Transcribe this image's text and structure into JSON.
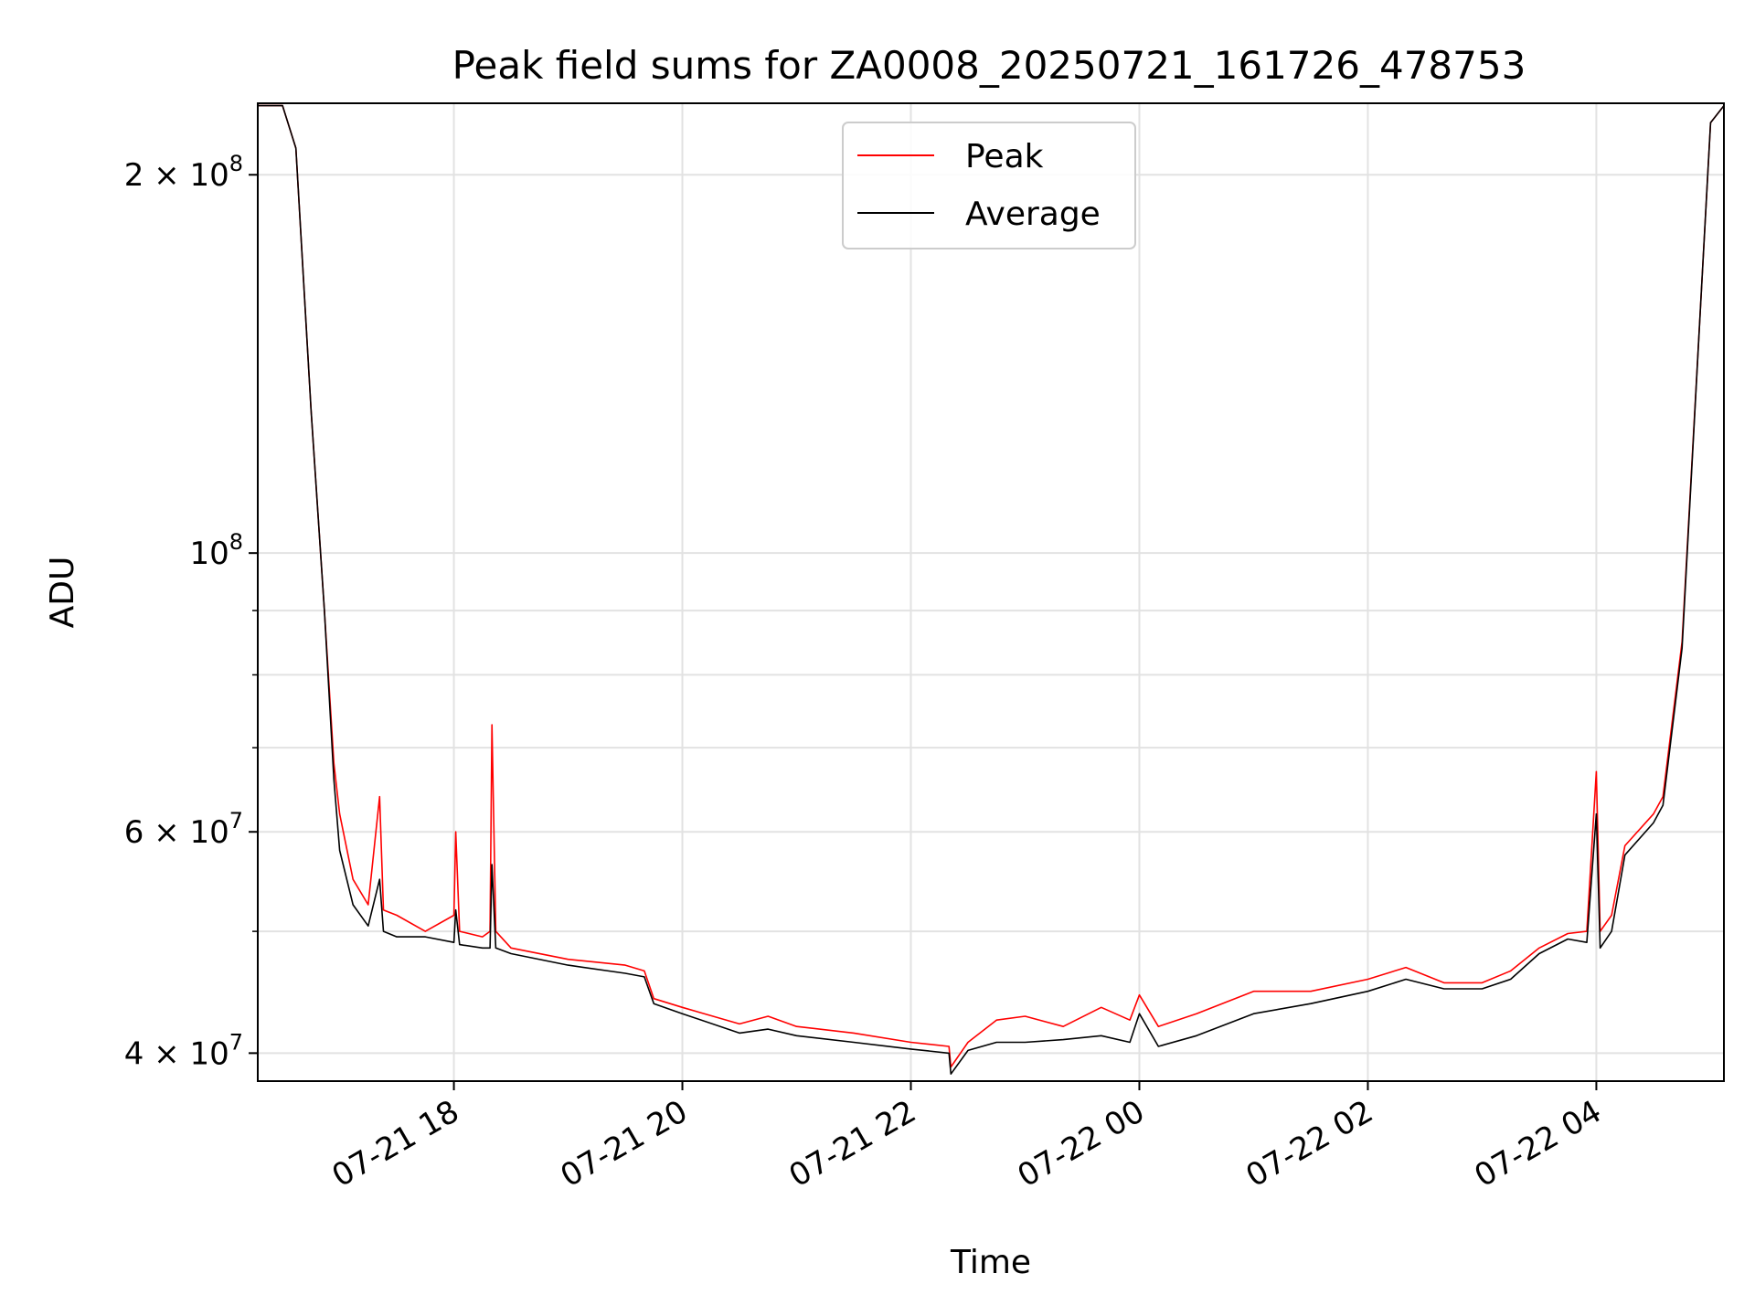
{
  "chart_data": {
    "type": "line",
    "title": "Peak field sums for ZA0008_20250721_161726_478753",
    "xlabel": "Time",
    "ylabel": "ADU",
    "y_scale": "log",
    "ylim": [
      38000000,
      228000000
    ],
    "xlim": [
      "2025-07-21 16:17",
      "2025-07-22 05:07"
    ],
    "grid": true,
    "legend_position": "top-center",
    "x_ticks": [
      {
        "t": "2025-07-21 18:00",
        "label": "07-21 18"
      },
      {
        "t": "2025-07-21 20:00",
        "label": "07-21 20"
      },
      {
        "t": "2025-07-21 22:00",
        "label": "07-21 22"
      },
      {
        "t": "2025-07-22 00:00",
        "label": "07-22 00"
      },
      {
        "t": "2025-07-22 02:00",
        "label": "07-22 02"
      },
      {
        "t": "2025-07-22 04:00",
        "label": "07-22 04"
      }
    ],
    "y_ticks": [
      {
        "v": 40000000,
        "base": "4 × 10",
        "exp": "7"
      },
      {
        "v": 60000000,
        "base": "6 × 10",
        "exp": "7"
      },
      {
        "v": 100000000,
        "base": "10",
        "exp": "8"
      },
      {
        "v": 200000000,
        "base": "2 × 10",
        "exp": "8"
      }
    ],
    "y_minor_ticks": [
      50000000,
      70000000,
      80000000,
      90000000
    ],
    "series": [
      {
        "name": "Peak",
        "color": "#ff0000",
        "points": [
          [
            "2025-07-21 16:17",
            227000000
          ],
          [
            "2025-07-21 16:30",
            227000000
          ],
          [
            "2025-07-21 16:37",
            210000000
          ],
          [
            "2025-07-21 16:45",
            130000000
          ],
          [
            "2025-07-21 16:52",
            90000000
          ],
          [
            "2025-07-21 16:57",
            68000000
          ],
          [
            "2025-07-21 17:00",
            62000000
          ],
          [
            "2025-07-21 17:07",
            55000000
          ],
          [
            "2025-07-21 17:15",
            52500000
          ],
          [
            "2025-07-21 17:21",
            64000000
          ],
          [
            "2025-07-21 17:23",
            52000000
          ],
          [
            "2025-07-21 17:30",
            51500000
          ],
          [
            "2025-07-21 17:45",
            50000000
          ],
          [
            "2025-07-21 18:00",
            51500000
          ],
          [
            "2025-07-21 18:01",
            60000000
          ],
          [
            "2025-07-21 18:03",
            50000000
          ],
          [
            "2025-07-21 18:15",
            49500000
          ],
          [
            "2025-07-21 18:19",
            50000000
          ],
          [
            "2025-07-21 18:20",
            73000000
          ],
          [
            "2025-07-21 18:22",
            50000000
          ],
          [
            "2025-07-21 18:30",
            48500000
          ],
          [
            "2025-07-21 19:00",
            47500000
          ],
          [
            "2025-07-21 19:30",
            47000000
          ],
          [
            "2025-07-21 19:40",
            46500000
          ],
          [
            "2025-07-21 19:45",
            44200000
          ],
          [
            "2025-07-21 20:00",
            43500000
          ],
          [
            "2025-07-21 20:30",
            42200000
          ],
          [
            "2025-07-21 20:45",
            42800000
          ],
          [
            "2025-07-21 21:00",
            42000000
          ],
          [
            "2025-07-21 21:30",
            41500000
          ],
          [
            "2025-07-21 22:00",
            40800000
          ],
          [
            "2025-07-21 22:20",
            40500000
          ],
          [
            "2025-07-21 22:21",
            39000000
          ],
          [
            "2025-07-21 22:30",
            40800000
          ],
          [
            "2025-07-21 22:45",
            42500000
          ],
          [
            "2025-07-21 23:00",
            42800000
          ],
          [
            "2025-07-21 23:20",
            42000000
          ],
          [
            "2025-07-21 23:40",
            43500000
          ],
          [
            "2025-07-21 23:55",
            42500000
          ],
          [
            "2025-07-22 00:00",
            44500000
          ],
          [
            "2025-07-22 00:10",
            42000000
          ],
          [
            "2025-07-22 00:30",
            43000000
          ],
          [
            "2025-07-22 01:00",
            44800000
          ],
          [
            "2025-07-22 01:30",
            44800000
          ],
          [
            "2025-07-22 02:00",
            45800000
          ],
          [
            "2025-07-22 02:20",
            46800000
          ],
          [
            "2025-07-22 02:40",
            45500000
          ],
          [
            "2025-07-22 03:00",
            45500000
          ],
          [
            "2025-07-22 03:15",
            46500000
          ],
          [
            "2025-07-22 03:30",
            48500000
          ],
          [
            "2025-07-22 03:45",
            49800000
          ],
          [
            "2025-07-22 03:55",
            50000000
          ],
          [
            "2025-07-22 04:00",
            67000000
          ],
          [
            "2025-07-22 04:02",
            50000000
          ],
          [
            "2025-07-22 04:08",
            51500000
          ],
          [
            "2025-07-22 04:15",
            58500000
          ],
          [
            "2025-07-22 04:30",
            62000000
          ],
          [
            "2025-07-22 04:35",
            64000000
          ],
          [
            "2025-07-22 04:45",
            85000000
          ],
          [
            "2025-07-22 04:55",
            160000000
          ],
          [
            "2025-07-22 05:00",
            220000000
          ],
          [
            "2025-07-22 05:07",
            227000000
          ]
        ]
      },
      {
        "name": "Average",
        "color": "#000000",
        "points": [
          [
            "2025-07-21 16:17",
            227000000
          ],
          [
            "2025-07-21 16:30",
            227000000
          ],
          [
            "2025-07-21 16:37",
            210000000
          ],
          [
            "2025-07-21 16:45",
            130000000
          ],
          [
            "2025-07-21 16:52",
            90000000
          ],
          [
            "2025-07-21 16:57",
            66000000
          ],
          [
            "2025-07-21 17:00",
            58000000
          ],
          [
            "2025-07-21 17:07",
            52500000
          ],
          [
            "2025-07-21 17:15",
            50500000
          ],
          [
            "2025-07-21 17:21",
            55000000
          ],
          [
            "2025-07-21 17:23",
            50000000
          ],
          [
            "2025-07-21 17:30",
            49500000
          ],
          [
            "2025-07-21 17:45",
            49500000
          ],
          [
            "2025-07-21 18:00",
            49000000
          ],
          [
            "2025-07-21 18:01",
            52000000
          ],
          [
            "2025-07-21 18:03",
            48800000
          ],
          [
            "2025-07-21 18:15",
            48500000
          ],
          [
            "2025-07-21 18:19",
            48500000
          ],
          [
            "2025-07-21 18:20",
            56500000
          ],
          [
            "2025-07-21 18:22",
            48500000
          ],
          [
            "2025-07-21 18:30",
            48000000
          ],
          [
            "2025-07-21 19:00",
            47000000
          ],
          [
            "2025-07-21 19:30",
            46300000
          ],
          [
            "2025-07-21 19:40",
            46000000
          ],
          [
            "2025-07-21 19:45",
            43800000
          ],
          [
            "2025-07-21 20:00",
            43000000
          ],
          [
            "2025-07-21 20:30",
            41500000
          ],
          [
            "2025-07-21 20:45",
            41800000
          ],
          [
            "2025-07-21 21:00",
            41300000
          ],
          [
            "2025-07-21 21:30",
            40800000
          ],
          [
            "2025-07-21 22:00",
            40300000
          ],
          [
            "2025-07-21 22:20",
            40000000
          ],
          [
            "2025-07-21 22:21",
            38500000
          ],
          [
            "2025-07-21 22:30",
            40200000
          ],
          [
            "2025-07-21 22:45",
            40800000
          ],
          [
            "2025-07-21 23:00",
            40800000
          ],
          [
            "2025-07-21 23:20",
            41000000
          ],
          [
            "2025-07-21 23:40",
            41300000
          ],
          [
            "2025-07-21 23:55",
            40800000
          ],
          [
            "2025-07-22 00:00",
            43000000
          ],
          [
            "2025-07-22 00:10",
            40500000
          ],
          [
            "2025-07-22 00:30",
            41300000
          ],
          [
            "2025-07-22 01:00",
            43000000
          ],
          [
            "2025-07-22 01:30",
            43800000
          ],
          [
            "2025-07-22 02:00",
            44800000
          ],
          [
            "2025-07-22 02:20",
            45800000
          ],
          [
            "2025-07-22 02:40",
            45000000
          ],
          [
            "2025-07-22 03:00",
            45000000
          ],
          [
            "2025-07-22 03:15",
            45800000
          ],
          [
            "2025-07-22 03:30",
            48000000
          ],
          [
            "2025-07-22 03:45",
            49300000
          ],
          [
            "2025-07-22 03:55",
            49000000
          ],
          [
            "2025-07-22 04:00",
            62000000
          ],
          [
            "2025-07-22 04:02",
            48500000
          ],
          [
            "2025-07-22 04:08",
            50000000
          ],
          [
            "2025-07-22 04:15",
            57500000
          ],
          [
            "2025-07-22 04:30",
            61000000
          ],
          [
            "2025-07-22 04:35",
            63000000
          ],
          [
            "2025-07-22 04:45",
            84000000
          ],
          [
            "2025-07-22 04:55",
            160000000
          ],
          [
            "2025-07-22 05:00",
            220000000
          ],
          [
            "2025-07-22 05:07",
            227000000
          ]
        ]
      }
    ]
  }
}
